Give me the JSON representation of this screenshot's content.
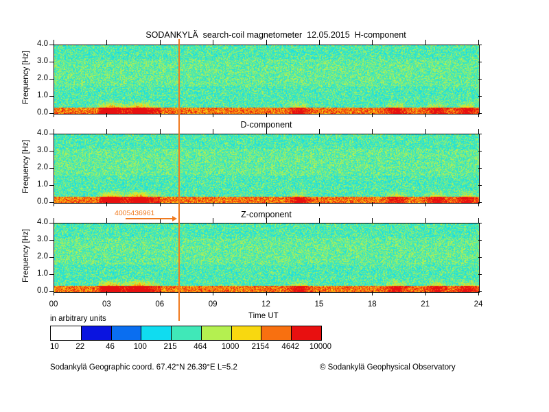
{
  "chart_data": {
    "type": "heatmap",
    "title": "SODANKYLÄ  search-coil magnetometer  12.05.2015  H-component",
    "panels": [
      {
        "name": "H-component",
        "label": "SODANKYLÄ  search-coil magnetometer  12.05.2015  H-component"
      },
      {
        "name": "D-component",
        "label": "D-component"
      },
      {
        "name": "Z-component",
        "label": "Z-component"
      }
    ],
    "xlabel": "Time UT",
    "ylabel": "Frequency [Hz]",
    "xlim": [
      0,
      24
    ],
    "ylim": [
      0,
      4
    ],
    "x_ticks": [
      "00",
      "03",
      "06",
      "09",
      "12",
      "15",
      "18",
      "21",
      "24"
    ],
    "y_ticks": [
      "0.0",
      "1.0",
      "2.0",
      "3.0",
      "4.0"
    ],
    "colorbar": {
      "label": "in arbitrary units",
      "boundaries": [
        "10",
        "22",
        "46",
        "100",
        "215",
        "464",
        "1000",
        "2154",
        "4642",
        "10000"
      ],
      "colors": [
        "#ffffff",
        "#0a14e0",
        "#0a6ef0",
        "#10dcf0",
        "#40e8b8",
        "#b4f050",
        "#f8d810",
        "#f87010",
        "#e81010"
      ]
    },
    "marker": {
      "time_ut": 7.1,
      "annotation": "4005436961",
      "color": "#f07a1e"
    },
    "activity_bursts_ut": [
      3.2,
      4.8,
      13.8,
      19.3,
      21.6,
      23.3
    ]
  },
  "footer": {
    "left": "Sodankylä Geographic coord. 67.42°N 26.39°E L=5.2",
    "right": "© Sodankylä Geophysical Observatory"
  }
}
